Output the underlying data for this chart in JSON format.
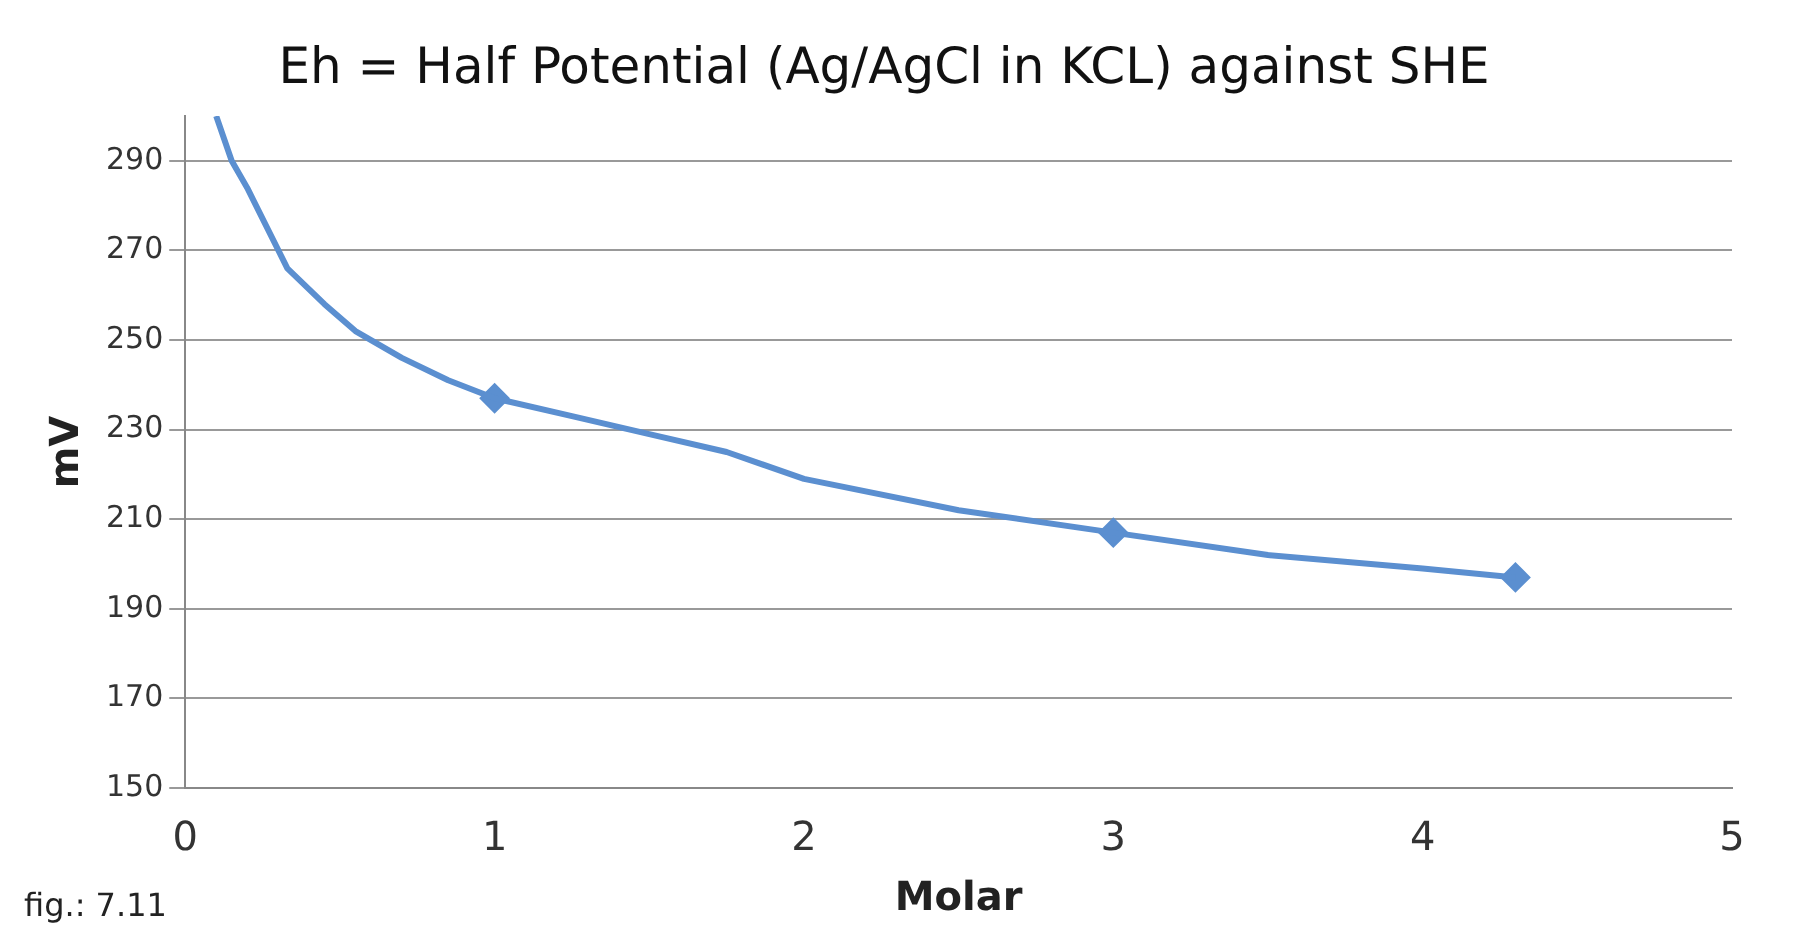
{
  "chart_data": {
    "type": "line",
    "title": "Eh = Half Potential (Ag/AgCl in KCL) against SHE",
    "xlabel": "Molar",
    "ylabel": "mV",
    "annotations": [
      "fig.: 7.11"
    ],
    "xlim": [
      0,
      5
    ],
    "xticks": [
      0,
      1,
      2,
      3,
      4,
      5
    ],
    "ylim": [
      150,
      300
    ],
    "yticks": [
      150,
      170,
      190,
      210,
      230,
      250,
      270,
      290
    ],
    "grid": "y",
    "legend": false,
    "series": [
      {
        "color": "#5b8fd0",
        "marker": "none",
        "x": [
          0.1,
          0.15,
          0.2,
          0.33,
          0.45,
          0.55,
          0.7,
          0.85,
          1,
          1.25,
          1.5,
          1.75,
          2,
          2.5,
          3,
          3.5,
          4,
          4.3
        ],
        "values": [
          300,
          290,
          284,
          266,
          258,
          252,
          246,
          241,
          237,
          233,
          229,
          225,
          219,
          212,
          207,
          202,
          199,
          197
        ]
      },
      {
        "type": "scatter",
        "color": "#5b8fd0",
        "marker": "diamond",
        "x": [
          1,
          3,
          4.3
        ],
        "values": [
          237,
          207,
          197
        ]
      }
    ]
  }
}
